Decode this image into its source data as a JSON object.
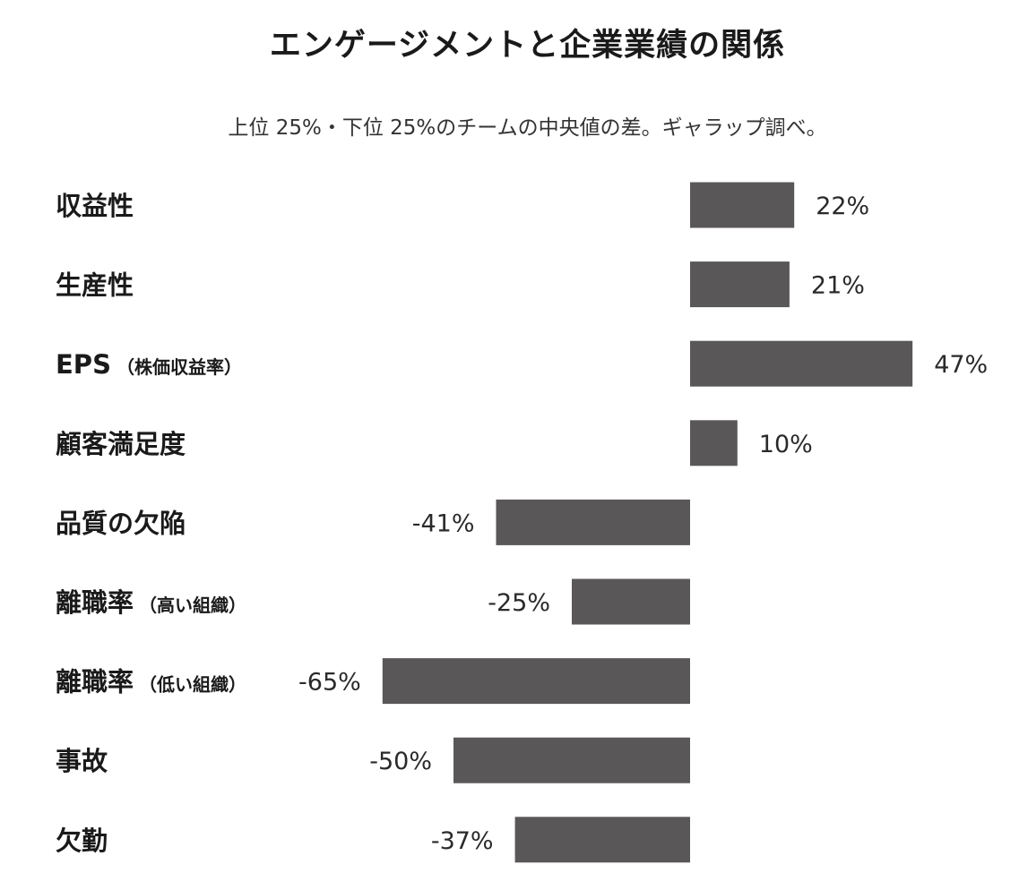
{
  "chart_data": {
    "type": "bar",
    "orientation": "horizontal",
    "title": "エンゲージメントと企業業績の関係",
    "subtitle": "上位 25%・下位 25%のチームの中央値の差。ギャラップ調べ。",
    "categories": [
      {
        "label": "収益性",
        "note": ""
      },
      {
        "label": "生産性",
        "note": ""
      },
      {
        "label": "EPS",
        "note": "（株価収益率）"
      },
      {
        "label": "顧客満足度",
        "note": ""
      },
      {
        "label": "品質の欠陥",
        "note": ""
      },
      {
        "label": "離職率",
        "note": "（高い組織）"
      },
      {
        "label": "離職率",
        "note": "（低い組織）"
      },
      {
        "label": "事故",
        "note": ""
      },
      {
        "label": "欠勤",
        "note": ""
      }
    ],
    "values": [
      22,
      21,
      47,
      10,
      -41,
      -25,
      -65,
      -50,
      -37
    ],
    "value_labels": [
      "22%",
      "21%",
      "47%",
      "10%",
      "-41%",
      "-25%",
      "-65%",
      "-50%",
      "-37%"
    ],
    "bar_color": "#5a5758",
    "grid": false,
    "legend": "none"
  }
}
